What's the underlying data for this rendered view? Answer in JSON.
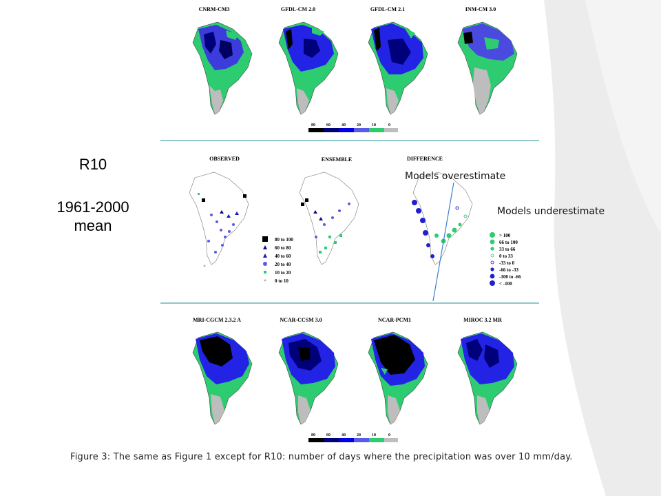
{
  "slide": {
    "title": "R10",
    "period_line1": "1961-2000",
    "period_line2": "mean",
    "note_over": "Models overestimate",
    "note_under": "Models underestimate",
    "caption": "Figure 3: The same as Figure 1 except for R10: number of days where the precipitation was over 10 mm/day."
  },
  "figure": {
    "top_models": [
      "CNRM-CM3",
      "GFDL-CM 2.0",
      "GFDL-CM 2.1",
      "INM-CM 3.0"
    ],
    "middle_panels": [
      "OBSERVED",
      "ENSEMBLE",
      "DIFFERENCE"
    ],
    "bottom_models": [
      "MRI-CGCM 2.3.2 A",
      "NCAR-CCSM 3.0",
      "NCAR-PCM1",
      "MIROC 3.2 MR"
    ],
    "colorbar_ticks": [
      "80",
      "60",
      "40",
      "20",
      "10",
      "0"
    ],
    "colorbar_colors": [
      "#000000",
      "#00007a",
      "#0000e6",
      "#5a5ae6",
      "#2ecc71",
      "#bebebe"
    ],
    "observed_legend": [
      {
        "label": "80  to  100",
        "symbol": "square-large",
        "color": "#000000"
      },
      {
        "label": "60  to  80",
        "symbol": "triangle",
        "color": "#0a0a8c"
      },
      {
        "label": "40  to  60",
        "symbol": "triangle",
        "color": "#1a1ab4"
      },
      {
        "label": "20  to  40",
        "symbol": "circle",
        "color": "#5a5ae6"
      },
      {
        "label": "10  to  20",
        "symbol": "square-small",
        "color": "#2ecc71"
      },
      {
        "label": "0  to  10",
        "symbol": "dot",
        "color": "#b4b4b4"
      }
    ],
    "difference_legend": [
      {
        "label": "> 100",
        "symbol": "circle-large",
        "color": "#2ecc71"
      },
      {
        "label": "66  to  100",
        "symbol": "circle",
        "color": "#2ecc71"
      },
      {
        "label": "33  to  66",
        "symbol": "circle-small",
        "color": "#2ecc71"
      },
      {
        "label": "0  to  33",
        "symbol": "ring",
        "color": "#2ecc71"
      },
      {
        "label": "-33  to  0",
        "symbol": "ring",
        "color": "#2020d0"
      },
      {
        "label": "-66  to  -33",
        "symbol": "circle-small",
        "color": "#2020d0"
      },
      {
        "label": "-100  to  -66",
        "symbol": "circle",
        "color": "#2020d0"
      },
      {
        "label": "< -100",
        "symbol": "circle-large",
        "color": "#2020d0"
      }
    ]
  },
  "colors": {
    "divider": "#4aa8b0",
    "annotation_line": "#3a7fd5",
    "decor_gray": "#e6e6e6"
  }
}
